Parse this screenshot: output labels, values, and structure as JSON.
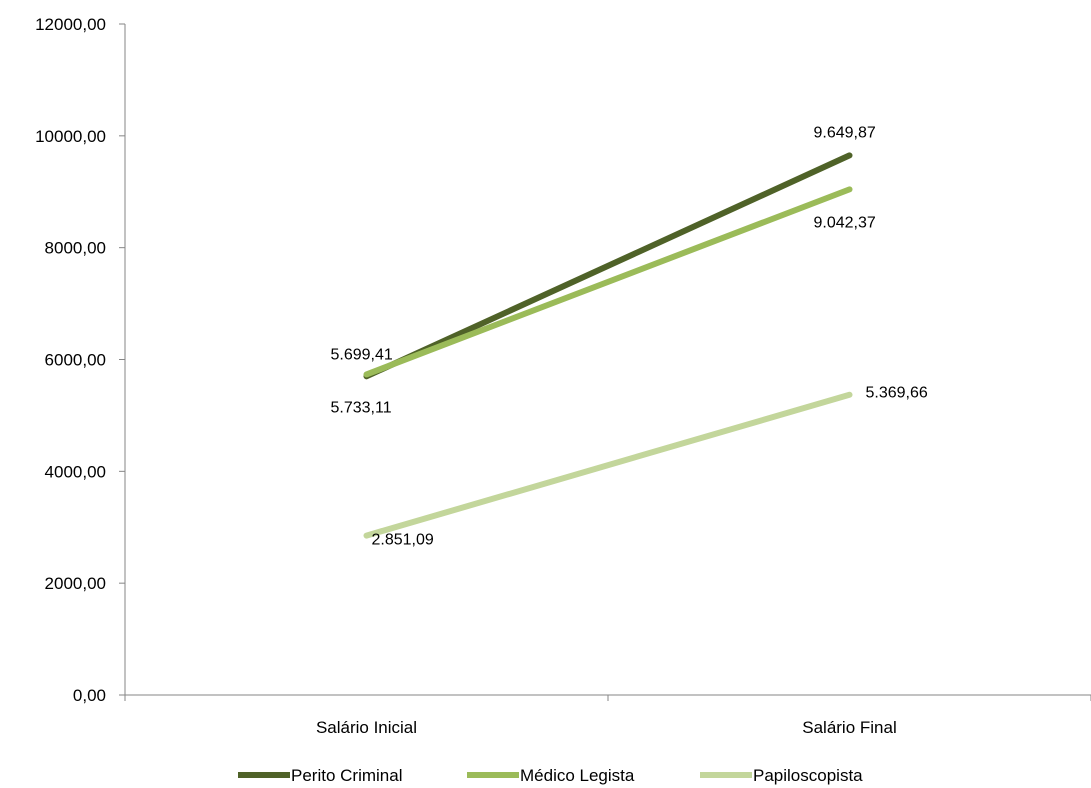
{
  "chart_data": {
    "type": "line",
    "categories": [
      "Salário Inicial",
      "Salário Final"
    ],
    "series": [
      {
        "name": "Perito Criminal",
        "values": [
          5699.41,
          9649.87
        ],
        "labels": [
          "5.699,41",
          "9.649,87"
        ],
        "color": "#4f6228"
      },
      {
        "name": "Médico Legista",
        "values": [
          5733.11,
          9042.37
        ],
        "labels": [
          "5.733,11",
          "9.042,37"
        ],
        "color": "#9bbb59"
      },
      {
        "name": "Papiloscopista",
        "values": [
          2851.09,
          5369.66
        ],
        "labels": [
          "2.851,09",
          "5.369,66"
        ],
        "color": "#c3d69b"
      }
    ],
    "yticks": [
      "0,00",
      "2000,00",
      "4000,00",
      "6000,00",
      "8000,00",
      "10000,00",
      "12000,00"
    ],
    "ylim": [
      0,
      12000
    ],
    "grid": false,
    "legend": "bottom"
  }
}
